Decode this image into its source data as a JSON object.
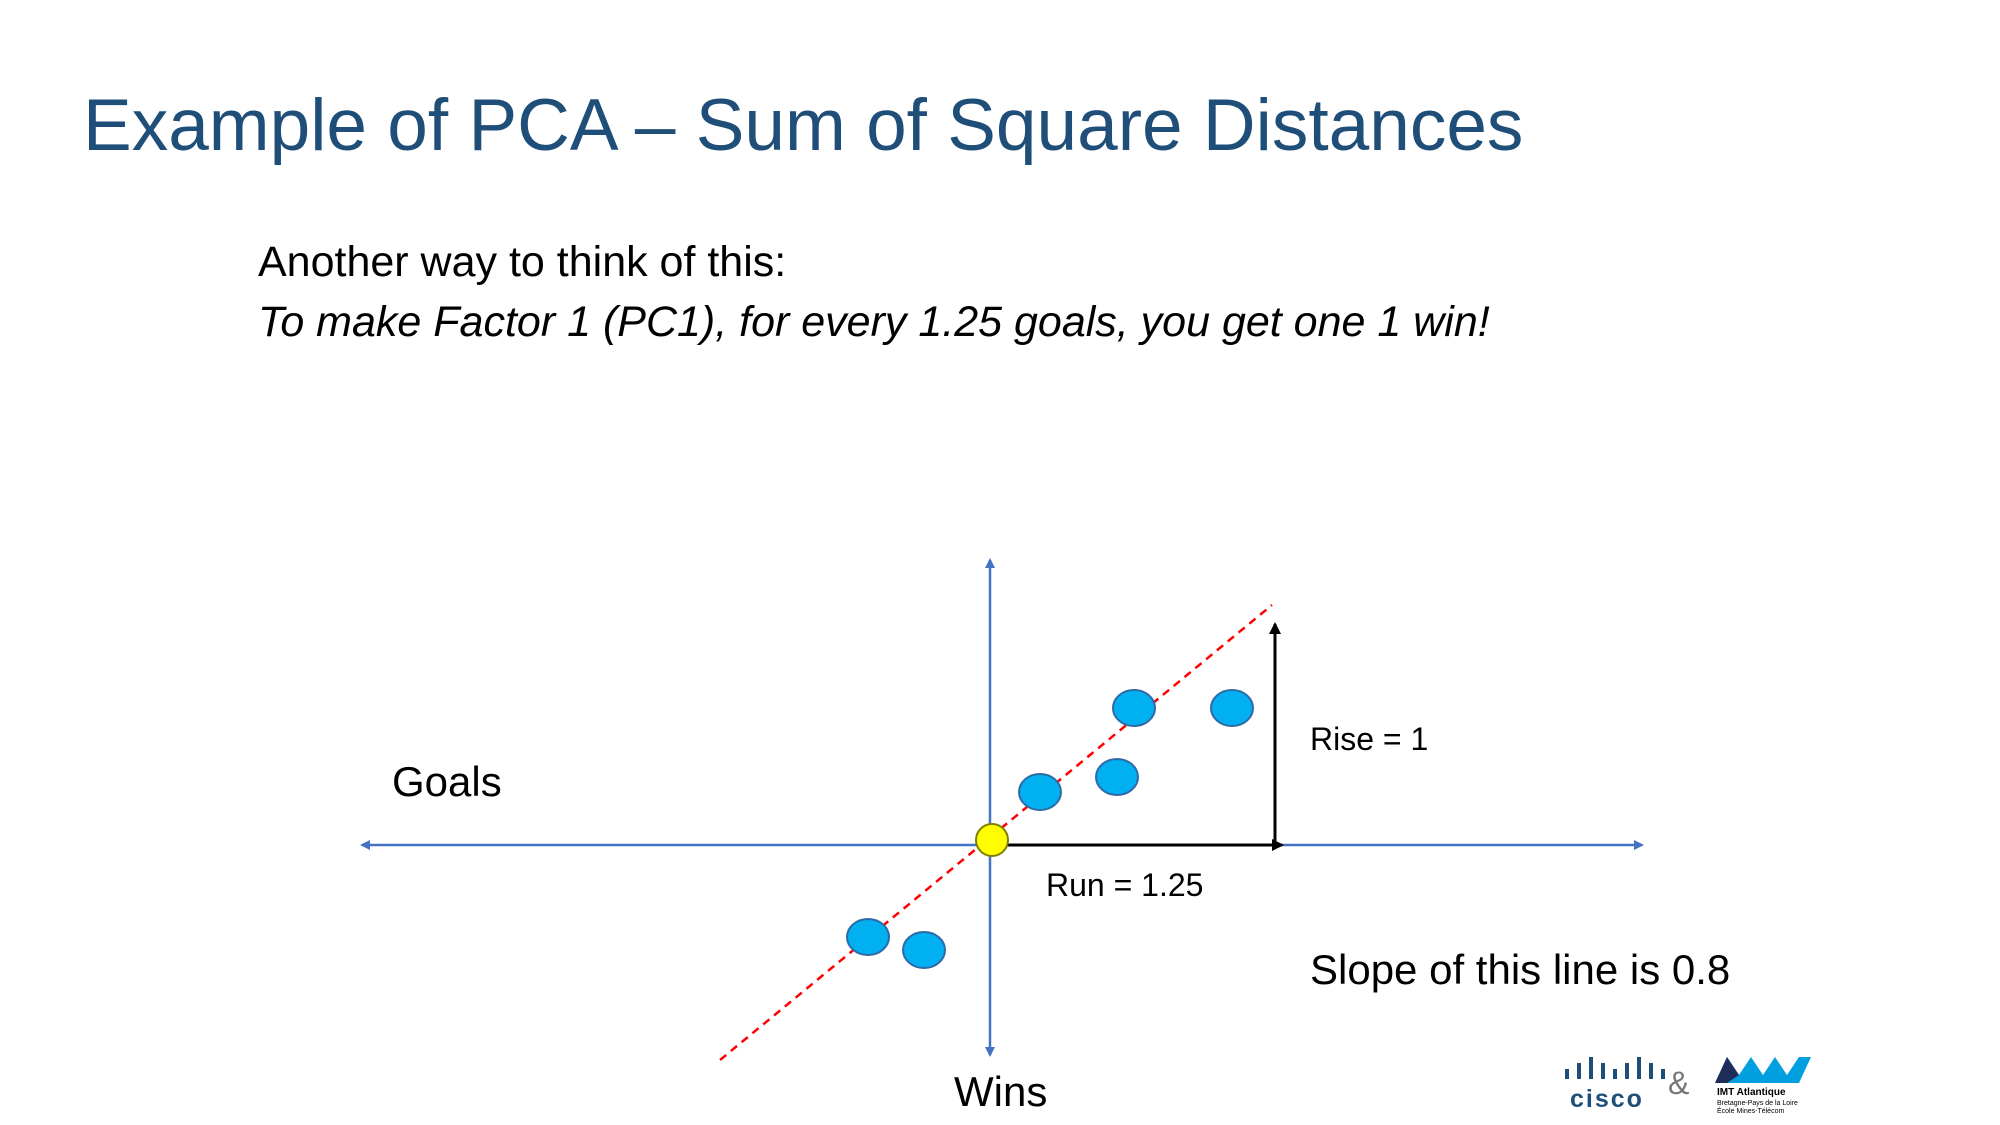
{
  "slide": {
    "title": "Example of PCA – Sum of Square Distances",
    "intro": "Another way to think of this:",
    "emphasis": "To make Factor 1 (PC1), for every 1.25 goals, you get one 1 win!"
  },
  "diagram": {
    "horizontal_axis_label": "Goals",
    "vertical_axis_label": "Wins",
    "rise_label": "Rise = 1",
    "run_label": "Run = 1.25",
    "slope_label": "Slope of this line is 0.8",
    "colors": {
      "axis": "#4472c4",
      "points": "#00b0f0",
      "point_stroke": "#2f6aa8",
      "origin": "#ffff00",
      "pc_line": "#ff0000",
      "triangle": "#000000"
    }
  },
  "footer": {
    "cisco_text": "cisco",
    "ampersand": "&",
    "imt_name": "IMT Atlantique",
    "imt_sub1": "Bretagne-Pays de la Loire",
    "imt_sub2": "École Mines-Télécom"
  }
}
